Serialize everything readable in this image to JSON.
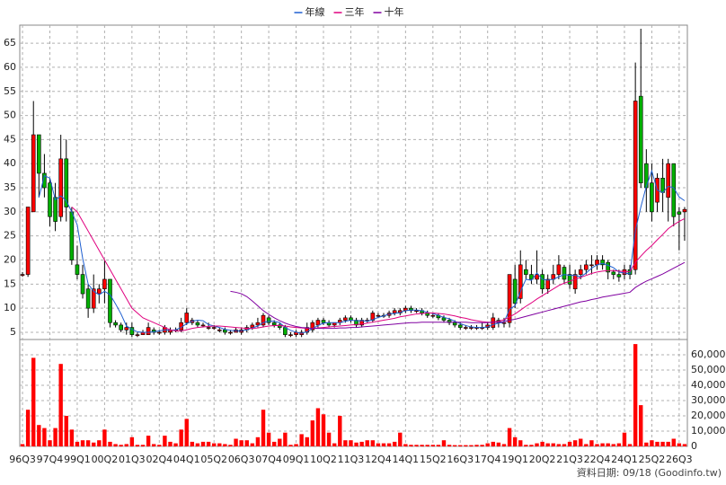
{
  "chart_data": {
    "type": "candlestick",
    "categories": [
      "96Q3",
      null,
      null,
      null,
      null,
      "97Q4",
      null,
      null,
      null,
      null,
      "99Q1",
      null,
      null,
      null,
      null,
      "00Q2",
      null,
      null,
      null,
      null,
      "01Q3",
      null,
      null,
      null,
      null,
      "02Q4",
      null,
      null,
      null,
      null,
      "04Q1",
      null,
      null,
      null,
      null,
      "05Q2",
      null,
      null,
      null,
      null,
      "06Q3",
      null,
      null,
      null,
      null,
      "07Q4",
      null,
      null,
      null,
      null,
      "09Q1",
      null,
      null,
      null,
      null,
      "10Q2",
      null,
      null,
      null,
      null,
      "11Q3",
      null,
      null,
      null,
      null,
      "12Q4",
      null,
      null,
      null,
      null,
      "14Q1",
      null,
      null,
      null,
      null,
      "15Q2",
      null,
      null,
      null,
      null,
      "16Q3",
      null,
      null,
      null,
      null,
      "17Q4",
      null,
      null,
      null,
      null,
      "19Q1",
      null,
      null,
      null,
      null,
      "20Q2",
      null,
      null,
      null,
      null,
      "21Q3",
      null,
      null,
      null,
      null,
      "22Q4",
      null,
      null,
      null,
      null,
      "24Q1",
      null,
      null,
      null,
      null,
      "25Q2",
      null,
      null,
      null,
      null,
      "26Q3",
      null
    ],
    "open": [
      17,
      17,
      30,
      46,
      38,
      36,
      33,
      29,
      41,
      30,
      19,
      17,
      14,
      10,
      13,
      14,
      16,
      7,
      6.5,
      5.5,
      6,
      4.5,
      4.5,
      4.5,
      5.5,
      5,
      5,
      5,
      5.5,
      5.5,
      7,
      7,
      7,
      6.5,
      6,
      6,
      5.5,
      5.5,
      5,
      5,
      5,
      5.5,
      6,
      6.5,
      6.5,
      8,
      7,
      6.5,
      6,
      4.5,
      4.5,
      4.5,
      5,
      5.5,
      6.5,
      7.5,
      7,
      6.5,
      7,
      7.5,
      8,
      7.5,
      6.5,
      7.5,
      7.5,
      8.5,
      8.5,
      8.5,
      9,
      9,
      9.5,
      10,
      9.5,
      9.5,
      9,
      8.5,
      8.5,
      8,
      7.5,
      7,
      6.5,
      6,
      6,
      6,
      6,
      6,
      6,
      7.5,
      7,
      7,
      16,
      12,
      18,
      17,
      16,
      17,
      14,
      16,
      17,
      18.5,
      17,
      14,
      17,
      18,
      19,
      19,
      20,
      19.5,
      17.5,
      17,
      17,
      18,
      18,
      54,
      40,
      36,
      32,
      37,
      33,
      40,
      30,
      30
    ],
    "high": [
      17.5,
      31,
      53,
      46,
      42,
      37,
      36,
      46,
      45,
      31,
      23,
      19,
      15,
      17,
      15,
      20,
      16,
      7.5,
      7,
      7,
      7,
      5,
      5.5,
      7,
      6,
      5.5,
      6.5,
      6,
      6,
      8,
      10,
      8,
      7.5,
      7,
      7,
      6.5,
      6,
      6,
      5.5,
      6,
      6,
      6.5,
      7,
      8,
      9,
      8.5,
      7.5,
      7,
      6.5,
      5,
      5.5,
      5.5,
      7,
      7.5,
      8,
      8,
      7.5,
      7,
      8,
      8.5,
      8.5,
      8,
      8,
      8,
      9.5,
      9,
      9,
      9.5,
      10,
      10,
      10.5,
      10.5,
      10,
      10,
      9.5,
      9,
      9,
      8.5,
      8,
      7.5,
      7,
      6.5,
      6.5,
      6.5,
      7,
      7,
      9,
      8,
      8,
      17,
      19,
      22,
      20,
      19,
      22,
      18,
      17,
      19,
      21,
      19,
      19,
      18,
      19,
      20,
      21,
      21,
      21,
      20,
      18,
      18,
      19,
      19,
      61,
      68,
      43,
      40,
      38,
      41,
      41,
      40,
      31,
      31
    ],
    "low": [
      16.5,
      16.5,
      30,
      33,
      33,
      27,
      26,
      28,
      28,
      19,
      16,
      12,
      8,
      9,
      11,
      11,
      6,
      6,
      5,
      4.5,
      4,
      4,
      4.5,
      4.5,
      4.5,
      4.5,
      4.5,
      4.5,
      5,
      5,
      6.5,
      6.5,
      6,
      6,
      5.5,
      5.5,
      5,
      4.5,
      4.5,
      5,
      4.5,
      5,
      5.5,
      6,
      6,
      6.5,
      6,
      5.5,
      4,
      4,
      4,
      4,
      4.5,
      5,
      6,
      6.5,
      6,
      6,
      6.5,
      7,
      7,
      6,
      6,
      7,
      7,
      8,
      8,
      8,
      8.5,
      8.5,
      9,
      9,
      9,
      8.5,
      8,
      8,
      7.5,
      7,
      6.5,
      6,
      5.5,
      5.5,
      5.5,
      5.5,
      5.5,
      5.5,
      5.5,
      6,
      6,
      6,
      10,
      11,
      16,
      15,
      15,
      13,
      13,
      15,
      16,
      15,
      14,
      13,
      16,
      17,
      17,
      18,
      18,
      16,
      16,
      15.5,
      16,
      16,
      17,
      35,
      30,
      28,
      30,
      30,
      28,
      27,
      22,
      24
    ],
    "close": [
      17,
      31,
      46,
      38,
      35,
      29,
      28,
      41,
      31,
      20,
      17,
      13,
      10,
      14,
      14,
      16,
      7,
      6.5,
      5.5,
      6,
      4.5,
      4.5,
      5,
      6,
      5,
      5,
      6,
      5.5,
      5.5,
      7,
      9,
      7.5,
      6.5,
      6.5,
      6,
      6,
      5.5,
      5,
      5,
      5.5,
      5.5,
      6,
      6.5,
      7,
      8.5,
      7,
      6.5,
      6,
      4.5,
      4.5,
      5,
      5,
      6,
      7,
      7.5,
      7,
      6.5,
      7,
      7.5,
      8,
      7.5,
      6.5,
      7.5,
      7.5,
      9,
      8.5,
      8.5,
      9,
      9.5,
      9.5,
      10,
      9.5,
      9.5,
      9,
      8.5,
      8.5,
      8,
      7.5,
      7,
      6.5,
      6,
      6,
      6,
      6,
      6,
      6.5,
      8,
      7,
      7,
      17,
      11,
      19,
      17,
      16,
      17,
      14,
      16,
      17,
      19,
      16,
      15,
      17,
      18,
      19,
      19,
      20,
      19,
      17.5,
      17,
      16.5,
      18,
      17,
      53,
      36,
      35,
      30,
      37,
      34,
      40,
      29,
      29.5,
      30.5
    ],
    "up_color": "#ff0000",
    "down_color": "#00b000",
    "ylim": [
      3.5,
      68.75
    ],
    "yticks": [
      5,
      10,
      15,
      20,
      25,
      30,
      35,
      40,
      45,
      50,
      55,
      60,
      65
    ],
    "grid": true,
    "legend": "top",
    "series": [
      {
        "name": "年線",
        "color": "#1f5fd0",
        "values": [
          null,
          null,
          null,
          33,
          37.5,
          37,
          32.5,
          33.3,
          32.3,
          30,
          27.3,
          20.3,
          15,
          13.5,
          12.8,
          13.5,
          12.8,
          10.9,
          8.8,
          6.3,
          5.6,
          5.1,
          5,
          5,
          5.1,
          5.3,
          5.5,
          5.4,
          5.5,
          6,
          6.8,
          7.3,
          7.5,
          7.4,
          6.6,
          6.3,
          6,
          5.6,
          5.4,
          5.3,
          5.3,
          5.5,
          5.9,
          6.3,
          7,
          7.3,
          7.3,
          7,
          6,
          5.4,
          5,
          4.8,
          5.1,
          5.8,
          6.4,
          6.9,
          7,
          7,
          7,
          7.3,
          7.5,
          7.4,
          7.4,
          7.3,
          7.6,
          8.1,
          8.4,
          8.8,
          8.9,
          9.1,
          9.5,
          9.6,
          9.6,
          9.5,
          9.1,
          8.9,
          8.5,
          8.1,
          7.8,
          7.3,
          6.8,
          6.4,
          6.1,
          6,
          6,
          6.1,
          6.6,
          6.9,
          7.1,
          9.8,
          10.5,
          13.5,
          16,
          15.8,
          17.3,
          16,
          15.8,
          16,
          16.5,
          17,
          16.8,
          16.8,
          16.5,
          17.3,
          18.3,
          19,
          19.3,
          18.9,
          18.4,
          17.5,
          17.3,
          17.1,
          26.1,
          31,
          35.3,
          38.5,
          34.5,
          34,
          35.3,
          35,
          33.1,
          32.3
        ]
      },
      {
        "name": "三年",
        "color": "#e0007f",
        "values": [
          null,
          null,
          null,
          null,
          null,
          null,
          null,
          null,
          null,
          31,
          30,
          28,
          26,
          24,
          22,
          20,
          18,
          16,
          14,
          12,
          10,
          9,
          8,
          7.5,
          7,
          6.5,
          6,
          5.5,
          5.3,
          5.3,
          5.5,
          5.8,
          6,
          6.1,
          6.2,
          6.3,
          6.3,
          6.2,
          6.1,
          6,
          5.9,
          5.8,
          5.8,
          5.9,
          6.1,
          6.3,
          6.4,
          6.4,
          6.3,
          6.1,
          6,
          5.9,
          5.8,
          5.8,
          5.9,
          6,
          6.1,
          6.2,
          6.3,
          6.4,
          6.5,
          6.6,
          6.7,
          6.9,
          7.1,
          7.3,
          7.5,
          7.7,
          7.9,
          8.2,
          8.4,
          8.6,
          8.8,
          8.9,
          9,
          9,
          8.9,
          8.8,
          8.6,
          8.4,
          8.1,
          7.9,
          7.6,
          7.4,
          7.2,
          7.1,
          7.1,
          7.3,
          7.6,
          8.2,
          8.8,
          9.6,
          10.4,
          11.1,
          11.9,
          12.6,
          13.3,
          14,
          14.7,
          15.2,
          15.6,
          16,
          16.4,
          16.8,
          17.2,
          17.5,
          17.7,
          17.8,
          17.8,
          17.7,
          17.6,
          17.6,
          19.5,
          20.8,
          22,
          23,
          24.2,
          25.3,
          26.5,
          27.3,
          28,
          28.6
        ]
      },
      {
        "name": "十年",
        "color": "#8000a0",
        "values": [
          null,
          null,
          null,
          null,
          null,
          null,
          null,
          null,
          null,
          null,
          null,
          null,
          null,
          null,
          null,
          null,
          null,
          null,
          null,
          null,
          null,
          null,
          null,
          null,
          null,
          null,
          null,
          null,
          null,
          null,
          null,
          null,
          null,
          null,
          null,
          null,
          null,
          null,
          13.5,
          13.3,
          13,
          12.4,
          11.5,
          10.5,
          9.5,
          8.7,
          8,
          7.4,
          6.9,
          6.5,
          6.2,
          6,
          5.9,
          5.8,
          5.8,
          5.8,
          5.8,
          5.8,
          5.9,
          5.9,
          6,
          6,
          6.1,
          6.2,
          6.3,
          6.4,
          6.5,
          6.6,
          6.7,
          6.8,
          6.9,
          7,
          7,
          7.1,
          7.1,
          7.1,
          7.1,
          7.1,
          7.1,
          7.1,
          7.1,
          7.1,
          7,
          7,
          7,
          7,
          7.1,
          7.1,
          7.2,
          7.5,
          7.7,
          8,
          8.3,
          8.6,
          8.9,
          9.2,
          9.5,
          9.8,
          10.1,
          10.4,
          10.7,
          11,
          11.3,
          11.5,
          11.8,
          12,
          12.3,
          12.5,
          12.7,
          12.9,
          13.1,
          13.3,
          14.3,
          15,
          15.6,
          16.1,
          16.6,
          17.1,
          17.7,
          18.3,
          18.9,
          19.5
        ]
      }
    ],
    "volume": {
      "color": "#ff0000",
      "values": [
        1500,
        24000,
        58000,
        14000,
        12000,
        4000,
        12000,
        54000,
        20000,
        11000,
        3000,
        4000,
        4000,
        2500,
        4000,
        11000,
        3000,
        1500,
        1000,
        1500,
        6000,
        1000,
        1000,
        7000,
        1500,
        1000,
        7000,
        3000,
        2000,
        11000,
        18000,
        3000,
        2000,
        3000,
        3000,
        2000,
        2000,
        1500,
        1000,
        5000,
        4000,
        4000,
        2000,
        6000,
        24000,
        9000,
        3000,
        5000,
        9000,
        1000,
        1500,
        8000,
        6000,
        17000,
        25000,
        21000,
        9000,
        2000,
        20000,
        4000,
        4000,
        2500,
        3000,
        4000,
        4000,
        2000,
        2000,
        2000,
        3000,
        9000,
        1500,
        1000,
        1000,
        1000,
        1000,
        1000,
        1000,
        4000,
        1000,
        800,
        800,
        800,
        800,
        1000,
        1000,
        2000,
        3000,
        2500,
        1500,
        12000,
        6000,
        4000,
        1000,
        1000,
        2000,
        3000,
        2000,
        2000,
        1500,
        1500,
        3000,
        4000,
        5000,
        1500,
        4000,
        1500,
        2000,
        2000,
        1500,
        2000,
        9000,
        1500,
        67000,
        27000,
        2500,
        4000,
        3000,
        3000,
        3000,
        5000,
        2000,
        1500
      ],
      "ylim": [
        0,
        70000
      ],
      "yticks": [
        0,
        {
          "value": 10000,
          "label": "10,000"
        },
        {
          "value": 20000,
          "label": "20,000"
        },
        {
          "value": 30000,
          "label": "30,000"
        },
        {
          "value": 40000,
          "label": "40,000"
        },
        {
          "value": 50000,
          "label": "50,000"
        },
        {
          "value": 60000,
          "label": "60,000"
        }
      ]
    },
    "source": "資料日期: 09/18 (Goodinfo.tw)"
  }
}
